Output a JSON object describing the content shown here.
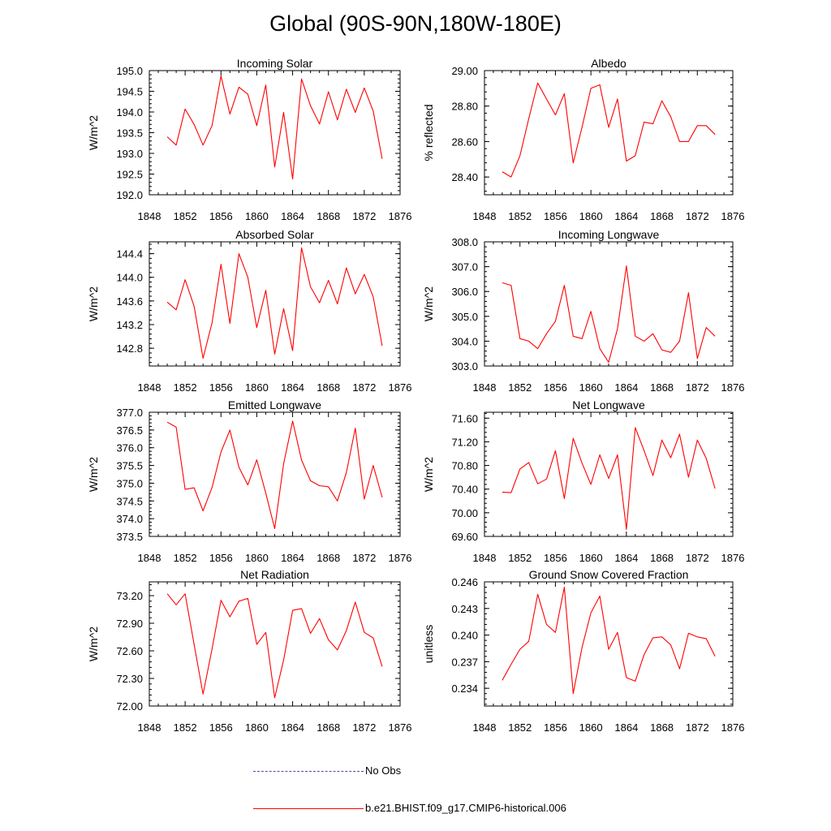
{
  "title": "Global (90S-90N,180W-180E)",
  "colors": {
    "model": "#ff0000",
    "obs": "#4a4aa8"
  },
  "legend": {
    "obs_label": "No Obs",
    "model_label": "b.e21.BHIST.f09_g17.CMIP6-historical.006"
  },
  "chart_data": [
    {
      "type": "line",
      "title": "Incoming Solar",
      "ylabel": "W/m^2",
      "xlim": [
        1848,
        1876
      ],
      "xticks": [
        1848,
        1852,
        1856,
        1860,
        1864,
        1868,
        1872,
        1876
      ],
      "xtick_labels": [
        "1848",
        "1852",
        "1856",
        "1860",
        "1864",
        "1868",
        "1872",
        "1876"
      ],
      "ylim": [
        192.0,
        195.0
      ],
      "yticks": [
        192.0,
        192.5,
        193.0,
        193.5,
        194.0,
        194.5,
        195.0
      ],
      "ytick_labels": [
        "192.0",
        "192.5",
        "193.0",
        "193.5",
        "194.0",
        "194.5",
        "195.0"
      ],
      "series": [
        {
          "name": "b.e21.BHIST.f09_g17.CMIP6-historical.006",
          "x": [
            1850,
            1851,
            1852,
            1853,
            1854,
            1855,
            1856,
            1857,
            1858,
            1859,
            1860,
            1861,
            1862,
            1863,
            1864,
            1865,
            1866,
            1867,
            1868,
            1869,
            1870,
            1871,
            1872,
            1873,
            1874
          ],
          "values": [
            193.4,
            193.2,
            194.07,
            193.7,
            193.2,
            193.67,
            194.87,
            193.95,
            194.6,
            194.43,
            193.67,
            194.65,
            192.67,
            193.99,
            192.38,
            194.8,
            194.15,
            193.71,
            194.49,
            193.81,
            194.55,
            193.99,
            194.58,
            194.02,
            192.87
          ]
        }
      ]
    },
    {
      "type": "line",
      "title": "Albedo",
      "ylabel": "% reflected",
      "xlim": [
        1848,
        1876
      ],
      "xticks": [
        1848,
        1852,
        1856,
        1860,
        1864,
        1868,
        1872,
        1876
      ],
      "xtick_labels": [
        "1848",
        "1852",
        "1856",
        "1860",
        "1864",
        "1868",
        "1872",
        "1876"
      ],
      "ylim": [
        28.3,
        29.0
      ],
      "yticks": [
        28.4,
        28.6,
        28.8,
        29.0
      ],
      "ytick_labels": [
        "28.40",
        "28.60",
        "28.80",
        "29.00"
      ],
      "series": [
        {
          "name": "b.e21.BHIST.f09_g17.CMIP6-historical.006",
          "x": [
            1850,
            1851,
            1852,
            1853,
            1854,
            1855,
            1856,
            1857,
            1858,
            1859,
            1860,
            1861,
            1862,
            1863,
            1864,
            1865,
            1866,
            1867,
            1868,
            1869,
            1870,
            1871,
            1872,
            1873,
            1874
          ],
          "values": [
            28.43,
            28.4,
            28.52,
            28.73,
            28.93,
            28.84,
            28.75,
            28.87,
            28.48,
            28.68,
            28.9,
            28.92,
            28.68,
            28.84,
            28.49,
            28.52,
            28.71,
            28.7,
            28.83,
            28.74,
            28.6,
            28.6,
            28.69,
            28.69,
            28.64
          ]
        }
      ]
    },
    {
      "type": "line",
      "title": "Absorbed Solar",
      "ylabel": "W/m^2",
      "xlim": [
        1848,
        1876
      ],
      "xticks": [
        1848,
        1852,
        1856,
        1860,
        1864,
        1868,
        1872,
        1876
      ],
      "xtick_labels": [
        "1848",
        "1852",
        "1856",
        "1860",
        "1864",
        "1868",
        "1872",
        "1876"
      ],
      "ylim": [
        142.5,
        144.6
      ],
      "yticks": [
        142.8,
        143.2,
        143.6,
        144.0,
        144.4
      ],
      "ytick_labels": [
        "142.8",
        "143.2",
        "143.6",
        "144.0",
        "144.4"
      ],
      "series": [
        {
          "name": "b.e21.BHIST.f09_g17.CMIP6-historical.006",
          "x": [
            1850,
            1851,
            1852,
            1853,
            1854,
            1855,
            1856,
            1857,
            1858,
            1859,
            1860,
            1861,
            1862,
            1863,
            1864,
            1865,
            1866,
            1867,
            1868,
            1869,
            1870,
            1871,
            1872,
            1873,
            1874
          ],
          "values": [
            143.58,
            143.45,
            143.96,
            143.51,
            142.63,
            143.23,
            144.22,
            143.22,
            144.4,
            144.0,
            143.15,
            143.78,
            142.7,
            143.47,
            142.76,
            144.5,
            143.84,
            143.57,
            143.95,
            143.55,
            144.16,
            143.72,
            144.05,
            143.67,
            142.84
          ]
        }
      ]
    },
    {
      "type": "line",
      "title": "Incoming Longwave",
      "ylabel": "W/m^2",
      "xlim": [
        1848,
        1876
      ],
      "xticks": [
        1848,
        1852,
        1856,
        1860,
        1864,
        1868,
        1872,
        1876
      ],
      "xtick_labels": [
        "1848",
        "1852",
        "1856",
        "1860",
        "1864",
        "1868",
        "1872",
        "1876"
      ],
      "ylim": [
        303.0,
        308.0
      ],
      "yticks": [
        303.0,
        304.0,
        305.0,
        306.0,
        307.0,
        308.0
      ],
      "ytick_labels": [
        "303.0",
        "304.0",
        "305.0",
        "306.0",
        "307.0",
        "308.0"
      ],
      "series": [
        {
          "name": "b.e21.BHIST.f09_g17.CMIP6-historical.006",
          "x": [
            1850,
            1851,
            1852,
            1853,
            1854,
            1855,
            1856,
            1857,
            1858,
            1859,
            1860,
            1861,
            1862,
            1863,
            1864,
            1865,
            1866,
            1867,
            1868,
            1869,
            1870,
            1871,
            1872,
            1873,
            1874
          ],
          "values": [
            306.35,
            306.25,
            304.1,
            304.0,
            303.7,
            304.3,
            304.8,
            306.25,
            304.2,
            304.1,
            305.2,
            303.7,
            303.15,
            304.5,
            307.03,
            304.2,
            304.0,
            304.3,
            303.65,
            303.55,
            304.0,
            305.95,
            303.3,
            304.55,
            304.2
          ]
        }
      ]
    },
    {
      "type": "line",
      "title": "Emitted Longwave",
      "ylabel": "W/m^2",
      "xlim": [
        1848,
        1876
      ],
      "xticks": [
        1848,
        1852,
        1856,
        1860,
        1864,
        1868,
        1872,
        1876
      ],
      "xtick_labels": [
        "1848",
        "1852",
        "1856",
        "1860",
        "1864",
        "1868",
        "1872",
        "1876"
      ],
      "ylim": [
        373.5,
        377.0
      ],
      "yticks": [
        373.5,
        374.0,
        374.5,
        375.0,
        375.5,
        376.0,
        376.5,
        377.0
      ],
      "ytick_labels": [
        "373.5",
        "374.0",
        "374.5",
        "375.0",
        "375.5",
        "376.0",
        "376.5",
        "377.0"
      ],
      "series": [
        {
          "name": "b.e21.BHIST.f09_g17.CMIP6-historical.006",
          "x": [
            1850,
            1851,
            1852,
            1853,
            1854,
            1855,
            1856,
            1857,
            1858,
            1859,
            1860,
            1861,
            1862,
            1863,
            1864,
            1865,
            1866,
            1867,
            1868,
            1869,
            1870,
            1871,
            1872,
            1873,
            1874
          ],
          "values": [
            376.72,
            376.58,
            374.83,
            374.87,
            374.22,
            374.88,
            375.88,
            376.5,
            375.45,
            374.95,
            375.66,
            374.72,
            373.72,
            375.55,
            376.75,
            375.65,
            375.07,
            374.93,
            374.9,
            374.5,
            375.3,
            376.55,
            374.55,
            375.5,
            374.6
          ]
        }
      ]
    },
    {
      "type": "line",
      "title": "Net Longwave",
      "ylabel": "W/m^2",
      "xlim": [
        1848,
        1876
      ],
      "xticks": [
        1848,
        1852,
        1856,
        1860,
        1864,
        1868,
        1872,
        1876
      ],
      "xtick_labels": [
        "1848",
        "1852",
        "1856",
        "1860",
        "1864",
        "1868",
        "1872",
        "1876"
      ],
      "ylim": [
        69.6,
        71.7
      ],
      "yticks": [
        69.6,
        70.0,
        70.4,
        70.8,
        71.2,
        71.6
      ],
      "ytick_labels": [
        "69.60",
        "70.00",
        "70.40",
        "70.80",
        "71.20",
        "71.60"
      ],
      "series": [
        {
          "name": "b.e21.BHIST.f09_g17.CMIP6-historical.006",
          "x": [
            1850,
            1851,
            1852,
            1853,
            1854,
            1855,
            1856,
            1857,
            1858,
            1859,
            1860,
            1861,
            1862,
            1863,
            1864,
            1865,
            1866,
            1867,
            1868,
            1869,
            1870,
            1871,
            1872,
            1873,
            1874
          ],
          "values": [
            70.35,
            70.34,
            70.74,
            70.85,
            70.49,
            70.57,
            71.05,
            70.24,
            71.26,
            70.84,
            70.48,
            70.98,
            70.58,
            70.98,
            69.72,
            71.44,
            71.05,
            70.63,
            71.23,
            70.93,
            71.33,
            70.6,
            71.23,
            70.92,
            70.41
          ]
        }
      ]
    },
    {
      "type": "line",
      "title": "Net Radiation",
      "ylabel": "W/m^2",
      "xlim": [
        1848,
        1876
      ],
      "xticks": [
        1848,
        1852,
        1856,
        1860,
        1864,
        1868,
        1872,
        1876
      ],
      "xtick_labels": [
        "1848",
        "1852",
        "1856",
        "1860",
        "1864",
        "1868",
        "1872",
        "1876"
      ],
      "ylim": [
        72.0,
        73.35
      ],
      "yticks": [
        72.0,
        72.3,
        72.6,
        72.9,
        73.2
      ],
      "ytick_labels": [
        "72.00",
        "72.30",
        "72.60",
        "72.90",
        "73.20"
      ],
      "series": [
        {
          "name": "b.e21.BHIST.f09_g17.CMIP6-historical.006",
          "x": [
            1850,
            1851,
            1852,
            1853,
            1854,
            1855,
            1856,
            1857,
            1858,
            1859,
            1860,
            1861,
            1862,
            1863,
            1864,
            1865,
            1866,
            1867,
            1868,
            1869,
            1870,
            1871,
            1872,
            1873,
            1874
          ],
          "values": [
            73.22,
            73.1,
            73.22,
            72.67,
            72.13,
            72.62,
            73.15,
            72.97,
            73.14,
            73.17,
            72.67,
            72.8,
            72.09,
            72.5,
            73.04,
            73.06,
            72.79,
            72.95,
            72.72,
            72.61,
            72.82,
            73.13,
            72.8,
            72.74,
            72.43
          ]
        }
      ]
    },
    {
      "type": "line",
      "title": "Ground Snow Covered Fraction",
      "ylabel": "unitless",
      "xlim": [
        1848,
        1876
      ],
      "xticks": [
        1848,
        1852,
        1856,
        1860,
        1864,
        1868,
        1872,
        1876
      ],
      "xtick_labels": [
        "1848",
        "1852",
        "1856",
        "1860",
        "1864",
        "1868",
        "1872",
        "1876"
      ],
      "ylim": [
        0.232,
        0.246
      ],
      "yticks": [
        0.234,
        0.237,
        0.24,
        0.243,
        0.246
      ],
      "ytick_labels": [
        "0.234",
        "0.237",
        "0.240",
        "0.243",
        "0.246"
      ],
      "series": [
        {
          "name": "b.e21.BHIST.f09_g17.CMIP6-historical.006",
          "x": [
            1850,
            1851,
            1852,
            1853,
            1854,
            1855,
            1856,
            1857,
            1858,
            1859,
            1860,
            1861,
            1862,
            1863,
            1864,
            1865,
            1866,
            1867,
            1868,
            1869,
            1870,
            1871,
            1872,
            1873,
            1874
          ],
          "values": [
            0.2349,
            0.2367,
            0.2384,
            0.2393,
            0.2446,
            0.2412,
            0.2403,
            0.2454,
            0.2334,
            0.2386,
            0.2425,
            0.2444,
            0.2384,
            0.2403,
            0.2352,
            0.2348,
            0.2378,
            0.2397,
            0.2398,
            0.2389,
            0.2362,
            0.2402,
            0.2398,
            0.2396,
            0.2376
          ]
        }
      ]
    }
  ]
}
